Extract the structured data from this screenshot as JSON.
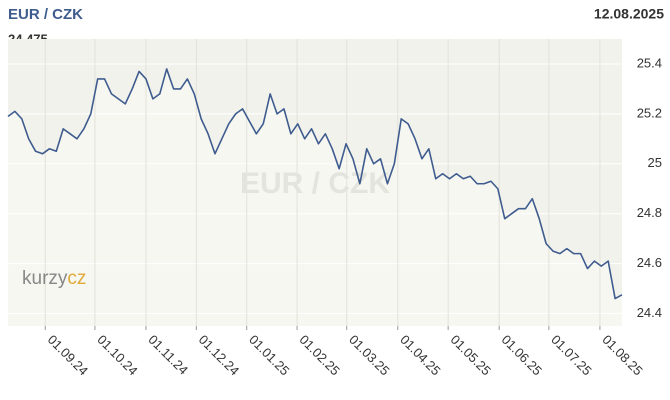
{
  "chart_data": {
    "type": "line",
    "title": "EUR / CZK",
    "date": "12.08.2025",
    "last_value": "24.475",
    "watermark": "EUR / CZK",
    "logo": [
      "kurzy",
      "cz"
    ],
    "series": [
      {
        "name": "EUR / CZK",
        "color": "#3f5c8f",
        "values": [
          25.19,
          25.21,
          25.18,
          25.1,
          25.05,
          25.04,
          25.06,
          25.05,
          25.14,
          25.12,
          25.1,
          25.14,
          25.2,
          25.34,
          25.34,
          25.28,
          25.26,
          25.24,
          25.3,
          25.37,
          25.34,
          25.26,
          25.28,
          25.38,
          25.3,
          25.3,
          25.34,
          25.28,
          25.18,
          25.12,
          25.04,
          25.1,
          25.16,
          25.2,
          25.22,
          25.17,
          25.12,
          25.16,
          25.28,
          25.2,
          25.22,
          25.12,
          25.16,
          25.1,
          25.14,
          25.08,
          25.12,
          25.06,
          24.98,
          25.08,
          25.02,
          24.92,
          25.06,
          25.0,
          25.02,
          24.92,
          25.0,
          25.18,
          25.16,
          25.1,
          25.02,
          25.06,
          24.94,
          24.96,
          24.94,
          24.96,
          24.94,
          24.95,
          24.92,
          24.92,
          24.93,
          24.9,
          24.78,
          24.8,
          24.82,
          24.82,
          24.86,
          24.78,
          24.68,
          24.65,
          24.64,
          24.66,
          24.64,
          24.64,
          24.58,
          24.61,
          24.59,
          24.61,
          24.46,
          24.475
        ]
      }
    ],
    "xlim": [
      0,
      89
    ],
    "xticks": [
      {
        "value": 5.4,
        "label": "01.09.24"
      },
      {
        "value": 12.6,
        "label": "01.10.24"
      },
      {
        "value": 20,
        "label": "01.11.24"
      },
      {
        "value": 27.3,
        "label": "01.12.24"
      },
      {
        "value": 34.6,
        "label": "01.01.25"
      },
      {
        "value": 41.9,
        "label": "01.02.25"
      },
      {
        "value": 49.1,
        "label": "01.03.25"
      },
      {
        "value": 56.5,
        "label": "01.04.25"
      },
      {
        "value": 63.8,
        "label": "01.05.25"
      },
      {
        "value": 71.2,
        "label": "01.06.25"
      },
      {
        "value": 78.4,
        "label": "01.07.25"
      },
      {
        "value": 85.8,
        "label": "01.08.25"
      }
    ],
    "ylim": [
      24.35,
      25.5
    ],
    "yticks": [
      24.4,
      24.6,
      24.8,
      25,
      25.2,
      25.4
    ],
    "grid": true
  }
}
